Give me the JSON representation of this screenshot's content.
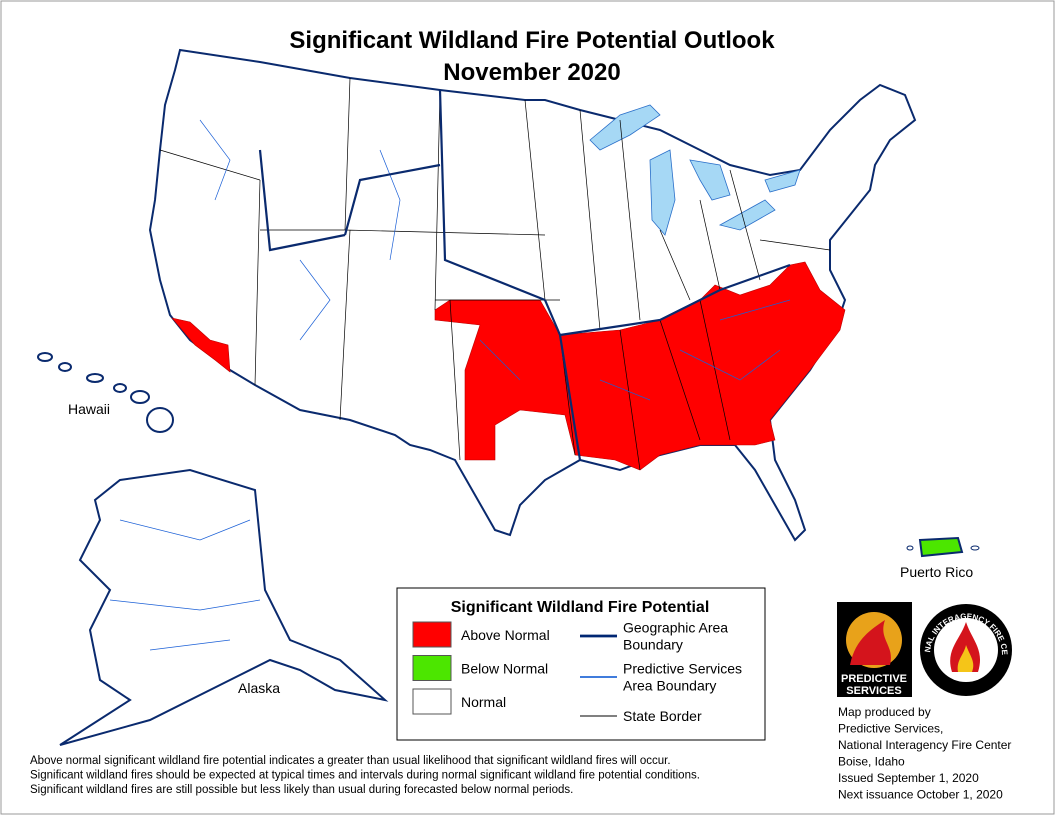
{
  "header": {
    "title": "Significant Wildland Fire Potential Outlook",
    "subtitle": "November 2020"
  },
  "map": {
    "labels": {
      "hawaii": "Hawaii",
      "alaska": "Alaska",
      "puerto_rico": "Puerto Rico"
    }
  },
  "legend": {
    "title": "Significant Wildland Fire Potential",
    "items": [
      {
        "label": "Above Normal",
        "color": "#ff0000"
      },
      {
        "label": "Below Normal",
        "color": "#4ce600"
      },
      {
        "label": "Normal",
        "color": "#ffffff"
      }
    ],
    "lines": [
      {
        "label": [
          "Geographic Area",
          "Boundary"
        ],
        "color": "#002673"
      },
      {
        "label": [
          "Predictive Services",
          "Area Boundary"
        ],
        "color": "#0050d0"
      },
      {
        "label": [
          "State Border"
        ],
        "color": "#000000"
      }
    ]
  },
  "logos": {
    "predictive_services": [
      "PREDICTIVE",
      "SERVICES"
    ],
    "nifc": "NATIONAL INTERAGENCY FIRE CENTER",
    "nifc_location": "Boise, Idaho"
  },
  "credits": [
    "Map produced by",
    "Predictive Services,",
    "National Interagency Fire Center",
    "Boise, Idaho",
    "Issued September 1, 2020",
    "Next issuance October 1, 2020"
  ],
  "footnote": [
    "Above normal significant wildland fire potential indicates a greater than usual likelihood that significant wildland fires will occur.",
    "Significant wildland fires should be expected at typical times and intervals during normal significant wildland fire potential conditions.",
    "Significant wildland fires are still possible but less likely than usual during forecasted below normal periods."
  ]
}
